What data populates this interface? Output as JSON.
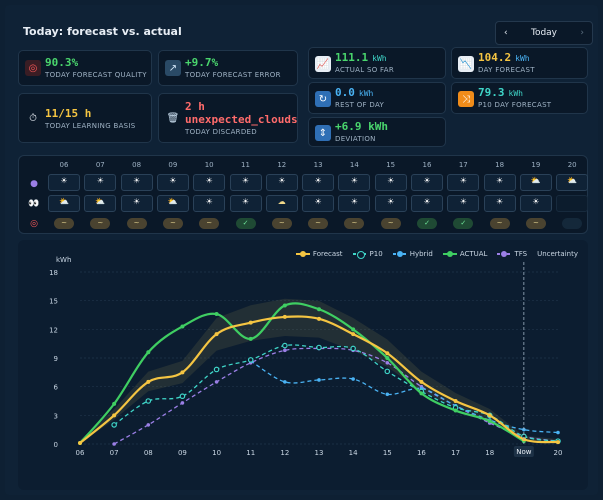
{
  "header": {
    "title": "Today: forecast vs. actual",
    "day_label": "Today",
    "prev_label": "‹",
    "next_label": "›"
  },
  "tiles": [
    {
      "id": "quality",
      "value": "90.3%",
      "unit": "",
      "label": "TODAY FORECAST QUALITY",
      "icon": "target-icon"
    },
    {
      "id": "error",
      "value": "+9.7%",
      "unit": "",
      "label": "TODAY FORECAST ERROR",
      "icon": "trend-arrow-icon"
    },
    {
      "id": "actual",
      "value": "111.1",
      "unit": "kWh",
      "label": "ACTUAL SO FAR",
      "icon": "line-chart-icon"
    },
    {
      "id": "dayfc",
      "value": "104.2",
      "unit": "kWh",
      "label": "DAY FORECAST",
      "icon": "declining-chart-icon"
    },
    {
      "id": "learning",
      "value": "11/15 h",
      "unit": "",
      "label": "TODAY LEARNING BASIS",
      "icon": "stopwatch-icon"
    },
    {
      "id": "discarded",
      "value": "2 h",
      "value2": "unexpected_clouds",
      "unit": "",
      "label": "TODAY DISCARDED",
      "icon": "trash-icon"
    },
    {
      "id": "rest",
      "value": "0.0",
      "unit": "kWh",
      "label": "REST OF DAY",
      "icon": "refresh-icon"
    },
    {
      "id": "p10",
      "value": "79.3",
      "unit": "kWh",
      "label": "P10 DAY FORECAST",
      "icon": "shuffle-icon"
    },
    {
      "id": "deviation",
      "value": "+6.9 kWh",
      "unit": "",
      "label": "DEVIATION",
      "icon": "up-down-icon"
    }
  ],
  "hours": {
    "labels": [
      "06",
      "07",
      "08",
      "09",
      "10",
      "11",
      "12",
      "13",
      "14",
      "15",
      "16",
      "17",
      "18",
      "19",
      "20"
    ],
    "forecast_row": [
      "☀",
      "☀",
      "☀",
      "☀",
      "☀",
      "☀",
      "☀",
      "☀",
      "☀",
      "☀",
      "☀",
      "☀",
      "☀",
      "⛅",
      "⛅"
    ],
    "actual_row": [
      "⛅",
      "⛅",
      "☀",
      "⛅",
      "☀",
      "☀",
      "☁",
      "☀",
      "☀",
      "☀",
      "☀",
      "☀",
      "☀",
      "☀",
      ""
    ],
    "status_row": [
      "~",
      "~",
      "~",
      "~",
      "~",
      "✓",
      "~",
      "~",
      "~",
      "~",
      "✓",
      "✓",
      "~",
      "~",
      ""
    ],
    "row_icons": [
      "crystal-ball-icon",
      "eyes-icon",
      "target-icon"
    ]
  },
  "legend": [
    "Forecast",
    "P10",
    "Hybrid",
    "ACTUAL",
    "TFS",
    "Uncertainty"
  ],
  "chart_data": {
    "type": "line",
    "ylabel": "kWh",
    "x": [
      "06",
      "07",
      "08",
      "09",
      "10",
      "11",
      "12",
      "13",
      "14",
      "15",
      "16",
      "17",
      "18",
      "19",
      "20"
    ],
    "ylim": [
      0,
      18
    ],
    "yticks": [
      0,
      3,
      6,
      9,
      12,
      15,
      18
    ],
    "now_label": "Now",
    "now_x": 19,
    "series": [
      {
        "name": "Forecast",
        "color": "#f5c542",
        "dash": false,
        "values": [
          0.1,
          3.0,
          6.5,
          7.5,
          11.5,
          12.7,
          13.3,
          13.1,
          11.5,
          9.5,
          6.5,
          4.5,
          3.0,
          0.5,
          0.2
        ]
      },
      {
        "name": "ACTUAL",
        "color": "#3fce62",
        "dash": false,
        "values": [
          0.1,
          4.2,
          9.6,
          12.3,
          13.6,
          11.0,
          14.5,
          14.1,
          12.0,
          9.0,
          5.3,
          3.5,
          2.4,
          0.3,
          null
        ]
      },
      {
        "name": "P10",
        "color": "#3fd5c8",
        "dash": true,
        "values": [
          null,
          2.0,
          4.5,
          5.0,
          7.8,
          8.8,
          10.3,
          10.1,
          10.0,
          7.6,
          5.5,
          3.8,
          3.0,
          0.8,
          0.3
        ]
      },
      {
        "name": "Hybrid",
        "color": "#4ab3f4",
        "dash": true,
        "values": [
          null,
          null,
          null,
          null,
          null,
          8.7,
          6.5,
          6.7,
          6.8,
          5.2,
          5.8,
          4.0,
          2.5,
          1.5,
          1.2
        ]
      },
      {
        "name": "TFS",
        "color": "#9b7fe6",
        "dash": true,
        "values": [
          null,
          0.0,
          2.0,
          4.3,
          6.5,
          8.5,
          9.8,
          10.0,
          9.8,
          8.5,
          6.0,
          4.0,
          2.2,
          0.8,
          0.3
        ]
      }
    ]
  }
}
